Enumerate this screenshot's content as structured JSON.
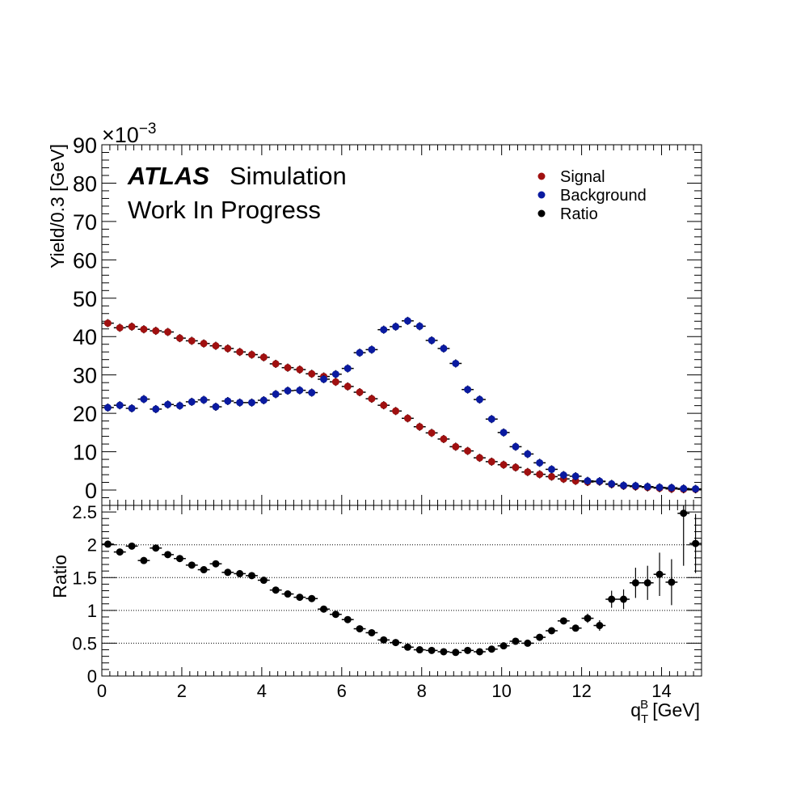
{
  "labels": {
    "atlas": "ATLAS",
    "simulation": "Simulation",
    "status": "Work In Progress",
    "exponent_base": "×10",
    "exponent_power": "−3"
  },
  "colors": {
    "signal": "#a01010",
    "background": "#0a1aa0",
    "ratio": "#000000"
  },
  "chart_data": [
    {
      "type": "scatter",
      "ylabel": "Yield/0.3 [GeV]",
      "xlim": [
        0,
        15
      ],
      "ylim": [
        -4,
        90
      ],
      "y_multiplier": "1e-3",
      "yticks": [
        0,
        10,
        20,
        30,
        40,
        50,
        60,
        70,
        80,
        90
      ],
      "legend_position": "top-right",
      "x": [
        0.15,
        0.45,
        0.75,
        1.05,
        1.35,
        1.65,
        1.95,
        2.25,
        2.55,
        2.85,
        3.15,
        3.45,
        3.75,
        4.05,
        4.35,
        4.65,
        4.95,
        5.25,
        5.55,
        5.85,
        6.15,
        6.45,
        6.75,
        7.05,
        7.35,
        7.65,
        7.95,
        8.25,
        8.55,
        8.85,
        9.15,
        9.45,
        9.75,
        10.05,
        10.35,
        10.65,
        10.95,
        11.25,
        11.55,
        11.85,
        12.15,
        12.45,
        12.75,
        13.05,
        13.35,
        13.65,
        13.95,
        14.25,
        14.55,
        14.85
      ],
      "series": [
        {
          "name": "Signal",
          "values": [
            43.5,
            42.3,
            42.6,
            41.9,
            41.5,
            41.2,
            39.6,
            38.9,
            38.2,
            37.6,
            36.9,
            36.0,
            35.3,
            34.6,
            32.9,
            31.9,
            31.4,
            30.3,
            29.6,
            28.2,
            27.0,
            25.5,
            23.8,
            22.1,
            20.6,
            18.7,
            16.5,
            14.9,
            13.3,
            11.3,
            10.2,
            8.4,
            7.4,
            6.6,
            5.9,
            4.7,
            4.1,
            3.5,
            2.9,
            2.4,
            2.1,
            2.2,
            1.5,
            1.1,
            0.9,
            0.7,
            0.5,
            0.3,
            0.2,
            0.2
          ]
        },
        {
          "name": "Background",
          "values": [
            21.5,
            22.1,
            21.3,
            23.7,
            21.1,
            22.3,
            22.0,
            23.0,
            23.5,
            21.7,
            23.2,
            22.8,
            22.8,
            23.4,
            25.0,
            25.9,
            26.0,
            25.4,
            28.9,
            30.2,
            31.7,
            35.8,
            36.6,
            41.8,
            42.6,
            44.1,
            42.7,
            39.0,
            36.9,
            33.0,
            26.2,
            23.6,
            18.5,
            15.0,
            11.3,
            9.4,
            7.1,
            5.4,
            3.9,
            3.6,
            2.4,
            2.3,
            1.6,
            1.2,
            1.1,
            0.9,
            0.7,
            0.6,
            0.4,
            0.3
          ]
        }
      ]
    },
    {
      "type": "scatter",
      "xlabel": "q",
      "xlabel_sub": "T",
      "xlabel_sup": "B",
      "xlabel_unit": "[GeV]",
      "ylabel": "Ratio",
      "xlim": [
        0,
        15
      ],
      "ylim": [
        0,
        2.6
      ],
      "xticks": [
        0,
        2,
        4,
        6,
        8,
        10,
        12,
        14
      ],
      "yticks": [
        0,
        0.5,
        1,
        1.5,
        2,
        2.5
      ],
      "ytick_labels": [
        "0",
        "0.5",
        "1",
        "1.5",
        "2",
        "2.5"
      ],
      "grid_y": true,
      "x": [
        0.15,
        0.45,
        0.75,
        1.05,
        1.35,
        1.65,
        1.95,
        2.25,
        2.55,
        2.85,
        3.15,
        3.45,
        3.75,
        4.05,
        4.35,
        4.65,
        4.95,
        5.25,
        5.55,
        5.85,
        6.15,
        6.45,
        6.75,
        7.05,
        7.35,
        7.65,
        7.95,
        8.25,
        8.55,
        8.85,
        9.15,
        9.45,
        9.75,
        10.05,
        10.35,
        10.65,
        10.95,
        11.25,
        11.55,
        11.85,
        12.15,
        12.45,
        12.75,
        13.05,
        13.35,
        13.65,
        13.95,
        14.25,
        14.55,
        14.85
      ],
      "series": [
        {
          "name": "Ratio",
          "values": [
            2.01,
            1.89,
            1.98,
            1.76,
            1.95,
            1.85,
            1.79,
            1.69,
            1.62,
            1.71,
            1.58,
            1.56,
            1.53,
            1.46,
            1.31,
            1.25,
            1.2,
            1.18,
            1.02,
            0.94,
            0.86,
            0.72,
            0.66,
            0.55,
            0.51,
            0.44,
            0.4,
            0.39,
            0.37,
            0.36,
            0.39,
            0.37,
            0.41,
            0.46,
            0.53,
            0.5,
            0.59,
            0.69,
            0.84,
            0.73,
            0.88,
            0.77,
            1.17,
            1.17,
            1.42,
            1.42,
            1.55,
            1.43,
            2.48,
            2.02
          ],
          "errors": [
            0.03,
            0.03,
            0.03,
            0.03,
            0.03,
            0.03,
            0.03,
            0.03,
            0.03,
            0.03,
            0.03,
            0.03,
            0.03,
            0.03,
            0.03,
            0.03,
            0.02,
            0.02,
            0.02,
            0.02,
            0.02,
            0.02,
            0.02,
            0.01,
            0.01,
            0.01,
            0.01,
            0.01,
            0.01,
            0.01,
            0.01,
            0.01,
            0.01,
            0.02,
            0.02,
            0.02,
            0.03,
            0.04,
            0.05,
            0.05,
            0.07,
            0.08,
            0.13,
            0.15,
            0.23,
            0.26,
            0.33,
            0.35,
            0.8,
            0.45
          ]
        }
      ]
    }
  ]
}
